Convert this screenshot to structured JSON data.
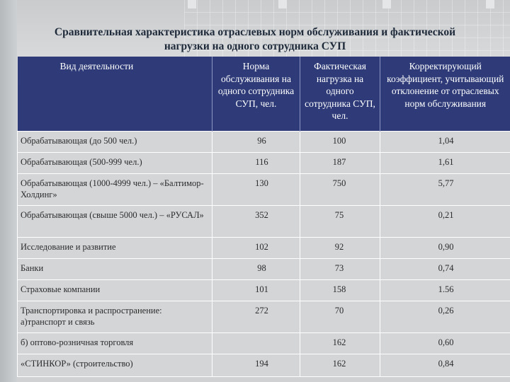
{
  "slide": {
    "title": "Сравнительная характеристика отраслевых норм обслуживания и фактической нагрузки на одного сотрудника СУП"
  },
  "table": {
    "headers": [
      "Вид деятельности",
      "Норма обслуживания на одного сотрудника СУП, чел.",
      "Фактическая нагрузка на одного сотрудника СУП, чел.",
      "Корректирующий коэффициент, учитывающий отклонение от отраслевых норм обслуживания"
    ],
    "rows": [
      {
        "activity": "Обрабатывающая (до 500 чел.)",
        "norm": "96",
        "actual": "100",
        "coef": "1,04"
      },
      {
        "activity": "Обрабатывающая (500-999 чел.)",
        "norm": "116",
        "actual": "187",
        "coef": "1,61"
      },
      {
        "activity": "Обрабатывающая (1000-4999 чел.) – «Балтимор-Холдинг»",
        "norm": "130",
        "actual": "750",
        "coef": "5,77"
      },
      {
        "activity": "Обрабатывающая (свыше 5000 чел.) – «РУСАЛ»",
        "norm": "352",
        "actual": "75",
        "coef": "0,21"
      },
      {
        "activity": "Исследование и развитие",
        "norm": "102",
        "actual": "92",
        "coef": "0,90"
      },
      {
        "activity": "Банки",
        "norm": "98",
        "actual": "73",
        "coef": "0,74"
      },
      {
        "activity": "Страховые компании",
        "norm": "101",
        "actual": "158",
        "coef": "1.56"
      },
      {
        "activity": "Транспортировка и распространение: а)транспорт и связь",
        "norm": "272",
        "actual": "70",
        "coef": "0,26"
      },
      {
        "activity": "б) оптово-розничная торговля",
        "norm": "",
        "actual": "162",
        "coef": "0,60"
      },
      {
        "activity": "«СТИНКОР» (строительство)",
        "norm": "194",
        "actual": "162",
        "coef": "0,84"
      }
    ]
  }
}
